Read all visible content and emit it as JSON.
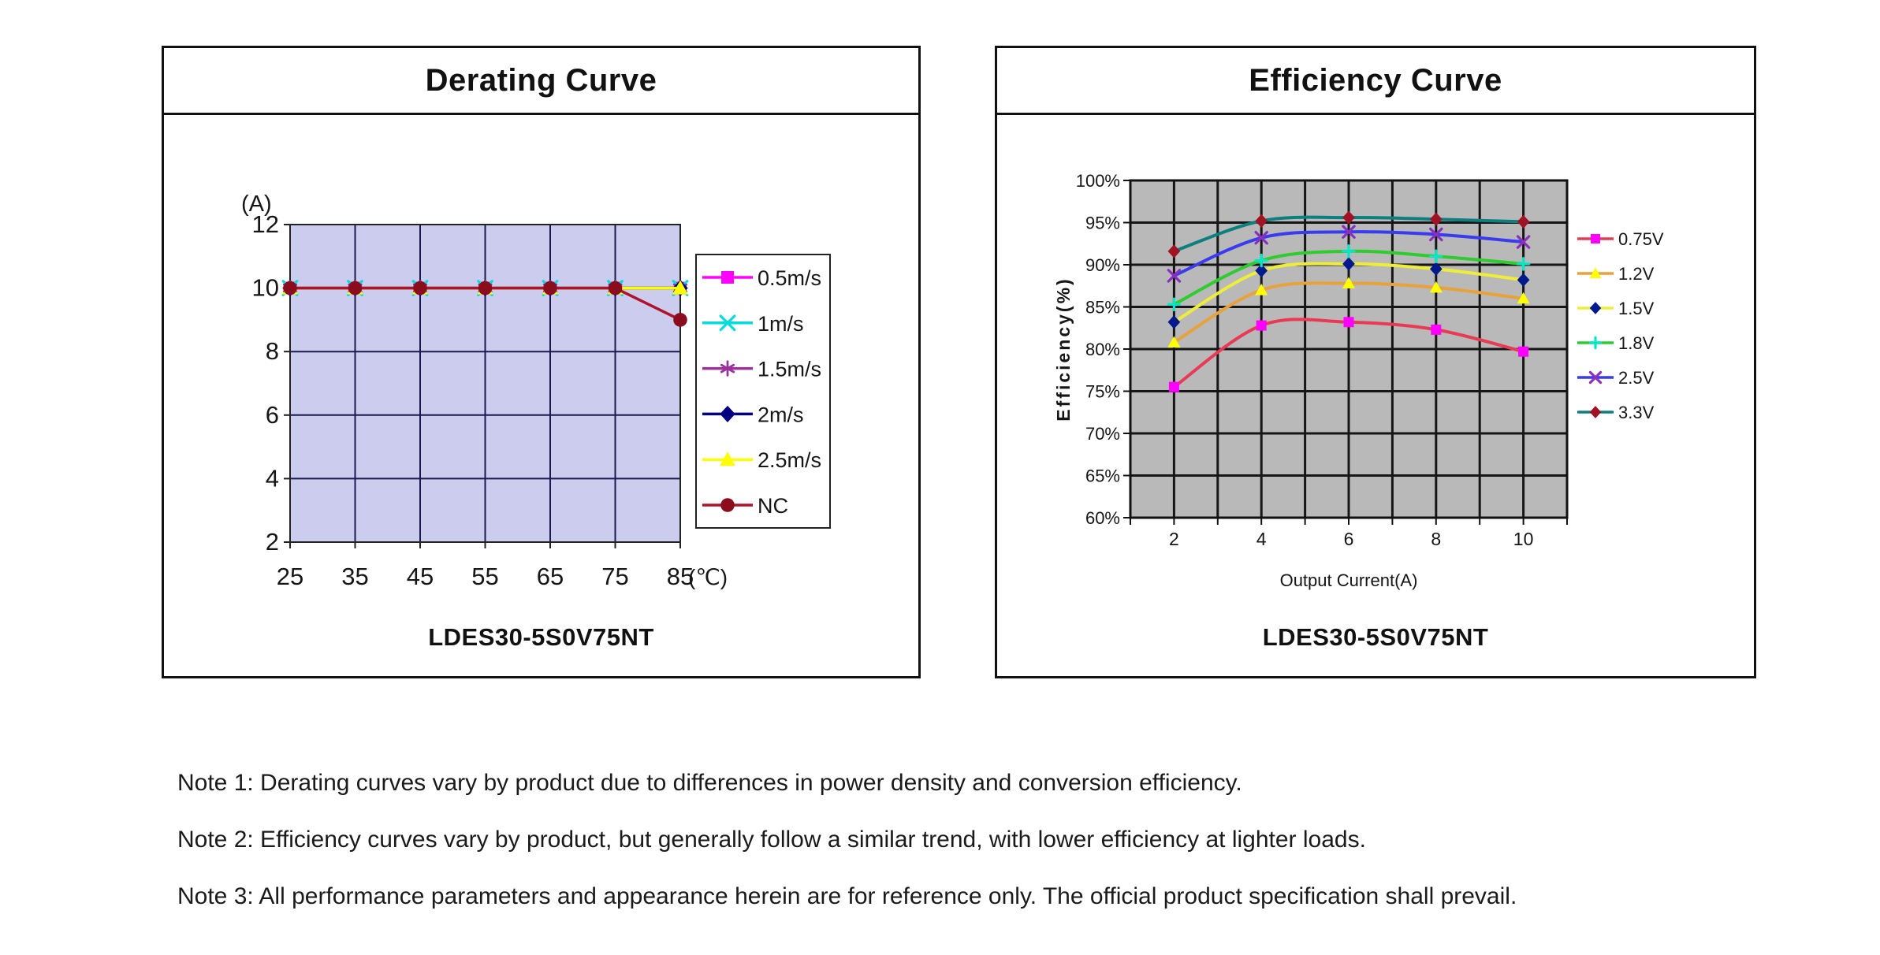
{
  "notes": [
    "Note 1: Derating curves vary by product due to differences in power density and conversion efficiency.",
    "Note 2: Efficiency curves vary by product, but generally follow a similar trend, with lower efficiency at lighter loads.",
    "Note 3: All performance parameters and appearance herein are for reference only. The official product specification shall prevail."
  ],
  "chart_data": [
    {
      "id": "derating",
      "type": "line",
      "title": "Derating Curve",
      "product_label": "LDES30-5S0V75NT",
      "xlabel_unit": "(℃)",
      "ylabel_unit": "(A)",
      "x_ticks": [
        25,
        35,
        45,
        55,
        65,
        75,
        85
      ],
      "y_ticks": [
        12,
        10,
        8,
        6,
        4,
        2
      ],
      "xlim": [
        25,
        85
      ],
      "ylim": [
        2,
        12
      ],
      "grid": true,
      "plot_bg": "#ccccee",
      "grid_color": "#1a1a50",
      "legend_position": "right-box",
      "series": [
        {
          "name": "0.5m/s",
          "line_color": "#ff00ff",
          "marker": "square",
          "marker_color": "#ff00ff",
          "values": [
            10,
            10,
            10,
            10,
            10,
            10,
            10
          ]
        },
        {
          "name": "1m/s",
          "line_color": "#00dcdc",
          "marker": "x",
          "marker_color": "#00dcdc",
          "values": [
            10,
            10,
            10,
            10,
            10,
            10,
            10
          ]
        },
        {
          "name": "1.5m/s",
          "line_color": "#993399",
          "marker": "asterisk",
          "marker_color": "#993399",
          "values": [
            10,
            10,
            10,
            10,
            10,
            10,
            10
          ]
        },
        {
          "name": "2m/s",
          "line_color": "#000080",
          "marker": "diamond",
          "marker_color": "#000080",
          "values": [
            10,
            10,
            10,
            10,
            10,
            10,
            10
          ]
        },
        {
          "name": "2.5m/s",
          "line_color": "#ffff00",
          "marker": "triangle",
          "marker_color": "#ffff00",
          "values": [
            10,
            10,
            10,
            10,
            10,
            10,
            10
          ]
        },
        {
          "name": "NC",
          "line_color": "#b01228",
          "marker": "circle",
          "marker_color": "#8b0d1d",
          "values": [
            10,
            10,
            10,
            10,
            10,
            10,
            9
          ]
        }
      ]
    },
    {
      "id": "efficiency",
      "type": "line",
      "title": "Efficiency Curve",
      "product_label": "LDES30-5S0V75NT",
      "xlabel": "Output Current(A)",
      "ylabel": "Efficiency(%)",
      "x": [
        2,
        4,
        6,
        8,
        10
      ],
      "x_ticks": [
        2,
        4,
        6,
        8,
        10
      ],
      "y_ticks": [
        100,
        95,
        90,
        85,
        80,
        75,
        70,
        65,
        60
      ],
      "y_tick_suffix": "%",
      "xlim": [
        1,
        11
      ],
      "ylim": [
        60,
        100
      ],
      "grid": true,
      "plot_bg": "#b9b9b9",
      "grid_color": "#161616",
      "legend_position": "right",
      "series": [
        {
          "name": "0.75V",
          "line_color": "#e83a55",
          "marker": "square",
          "marker_color": "#ff00ff",
          "values": [
            75.5,
            82.8,
            83.2,
            82.3,
            79.7
          ]
        },
        {
          "name": "1.2V",
          "line_color": "#e8a23c",
          "marker": "triangle",
          "marker_color": "#ffff00",
          "values": [
            80.8,
            87.0,
            87.8,
            87.3,
            86.0
          ]
        },
        {
          "name": "1.5V",
          "line_color": "#eeee3a",
          "marker": "diamond",
          "marker_color": "#001a8c",
          "values": [
            83.2,
            89.3,
            90.1,
            89.5,
            88.2
          ]
        },
        {
          "name": "1.8V",
          "line_color": "#2ecc2e",
          "marker": "plus",
          "marker_color": "#00e8c8",
          "values": [
            85.3,
            90.5,
            91.6,
            91.0,
            90.1
          ]
        },
        {
          "name": "2.5V",
          "line_color": "#3a3aee",
          "marker": "x",
          "marker_color": "#8b2fbf",
          "values": [
            88.7,
            93.2,
            93.9,
            93.6,
            92.7
          ]
        },
        {
          "name": "3.3V",
          "line_color": "#0e7f7f",
          "marker": "diamond",
          "marker_color": "#a01325",
          "values": [
            91.6,
            95.2,
            95.6,
            95.4,
            95.1
          ]
        }
      ]
    }
  ]
}
